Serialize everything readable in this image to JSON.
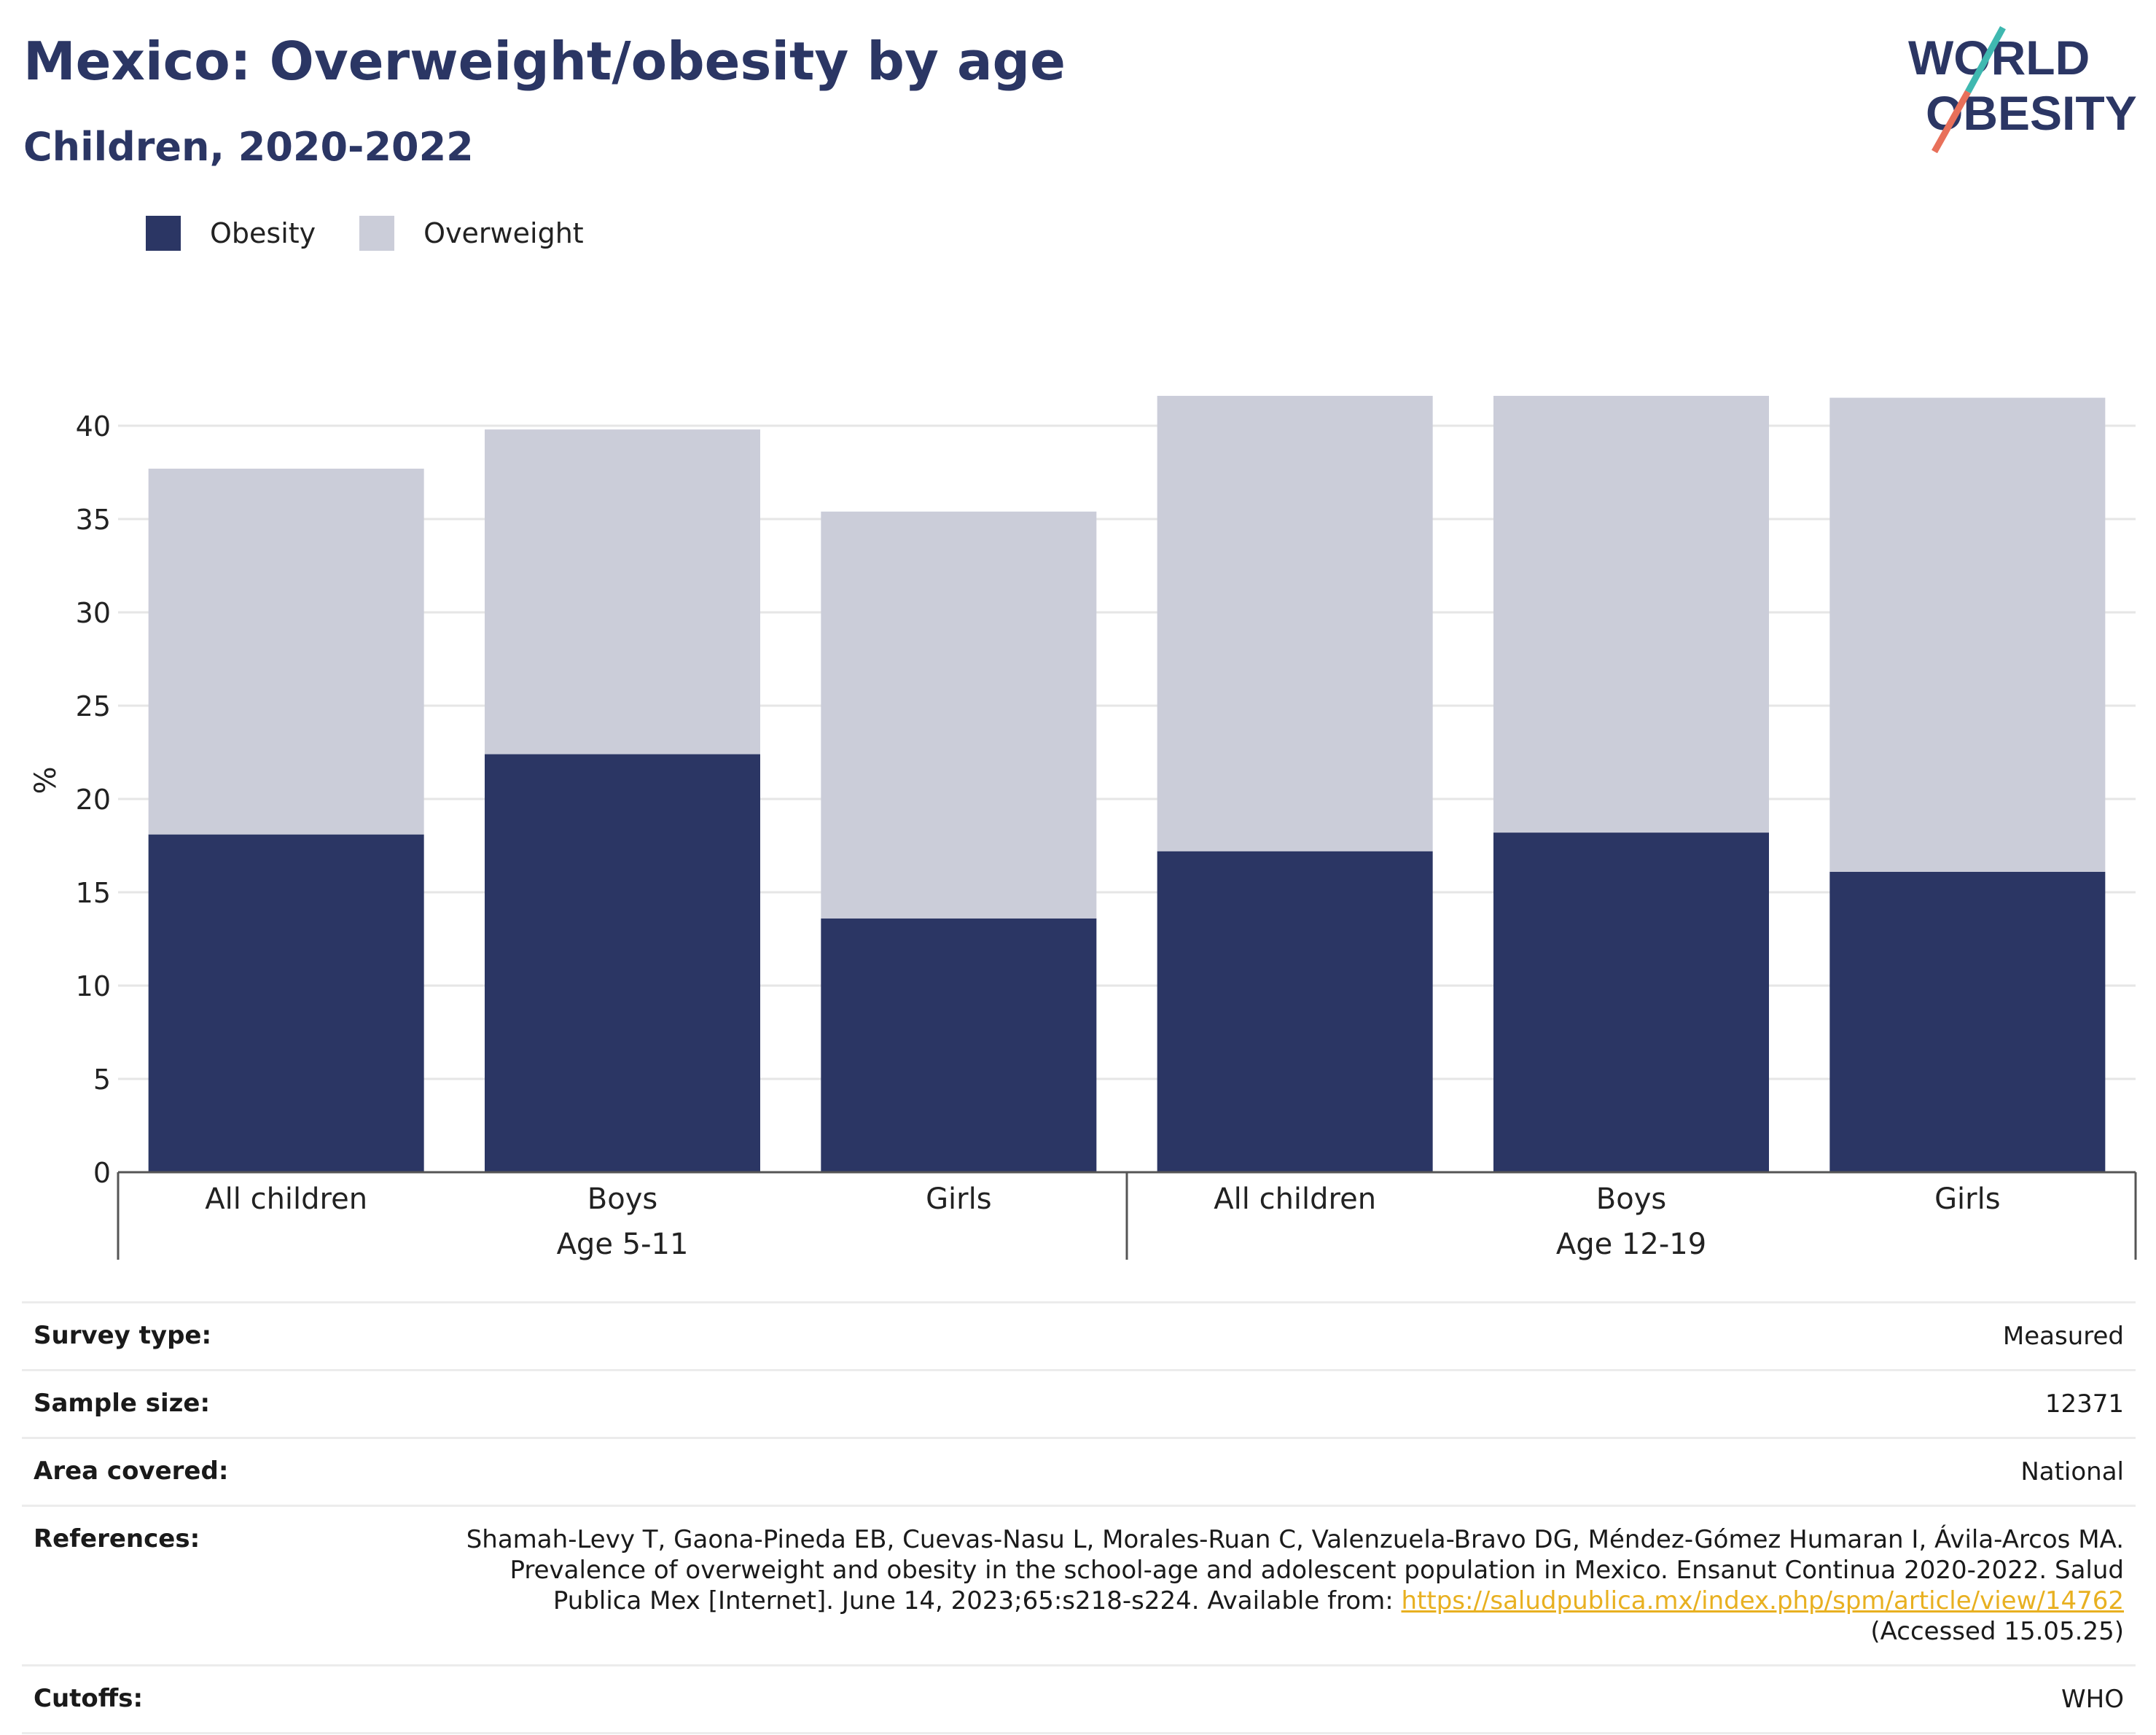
{
  "title": "Mexico: Overweight/obesity by age",
  "subtitle": "Children, 2020-2022",
  "logo": {
    "line1": "WORLD",
    "line2": "OBESITY"
  },
  "colors": {
    "obesity": "#2b3664",
    "overweight": "#cbcdd9",
    "title": "#2b3664",
    "link": "#e8b020"
  },
  "chart_data": {
    "type": "bar",
    "stacked": true,
    "title": "Mexico: Overweight/obesity by age",
    "subtitle": "Children, 2020-2022",
    "ylabel": "%",
    "ylim": [
      0,
      42
    ],
    "yticks": [
      0,
      5,
      10,
      15,
      20,
      25,
      30,
      35,
      40
    ],
    "grid": true,
    "legend_position": "top-left",
    "categories": [
      "All children",
      "Boys",
      "Girls",
      "All children",
      "Boys",
      "Girls"
    ],
    "groups": [
      {
        "label": "Age 5-11",
        "categories": [
          "All children",
          "Boys",
          "Girls"
        ]
      },
      {
        "label": "Age 12-19",
        "categories": [
          "All children",
          "Boys",
          "Girls"
        ]
      }
    ],
    "series": [
      {
        "name": "Obesity",
        "values": [
          18.1,
          22.4,
          13.6,
          17.2,
          18.2,
          16.1
        ]
      },
      {
        "name": "Overweight",
        "values": [
          19.6,
          17.4,
          21.8,
          24.4,
          23.4,
          25.4
        ]
      }
    ]
  },
  "meta": [
    {
      "label": "Survey type:",
      "value": "Measured"
    },
    {
      "label": "Sample size:",
      "value": "12371"
    },
    {
      "label": "Area covered:",
      "value": "National"
    },
    {
      "label": "References:",
      "value": "Shamah-Levy T, Gaona-Pineda EB, Cuevas-Nasu L, Morales-Ruan C, Valenzuela-Bravo DG, Méndez-Gómez Humaran I, Ávila-Arcos MA. Prevalence of overweight and obesity in the school-age and adolescent population in Mexico. Ensanut Continua 2020-2022. Salud Publica Mex [Internet]. June 14, 2023;65:s218-s224. Available from: ",
      "link": "https://saludpublica.mx/index.php/spm/article/view/14762",
      "suffix": " (Accessed 15.05.25)"
    },
    {
      "label": "Cutoffs:",
      "value": "WHO"
    }
  ]
}
